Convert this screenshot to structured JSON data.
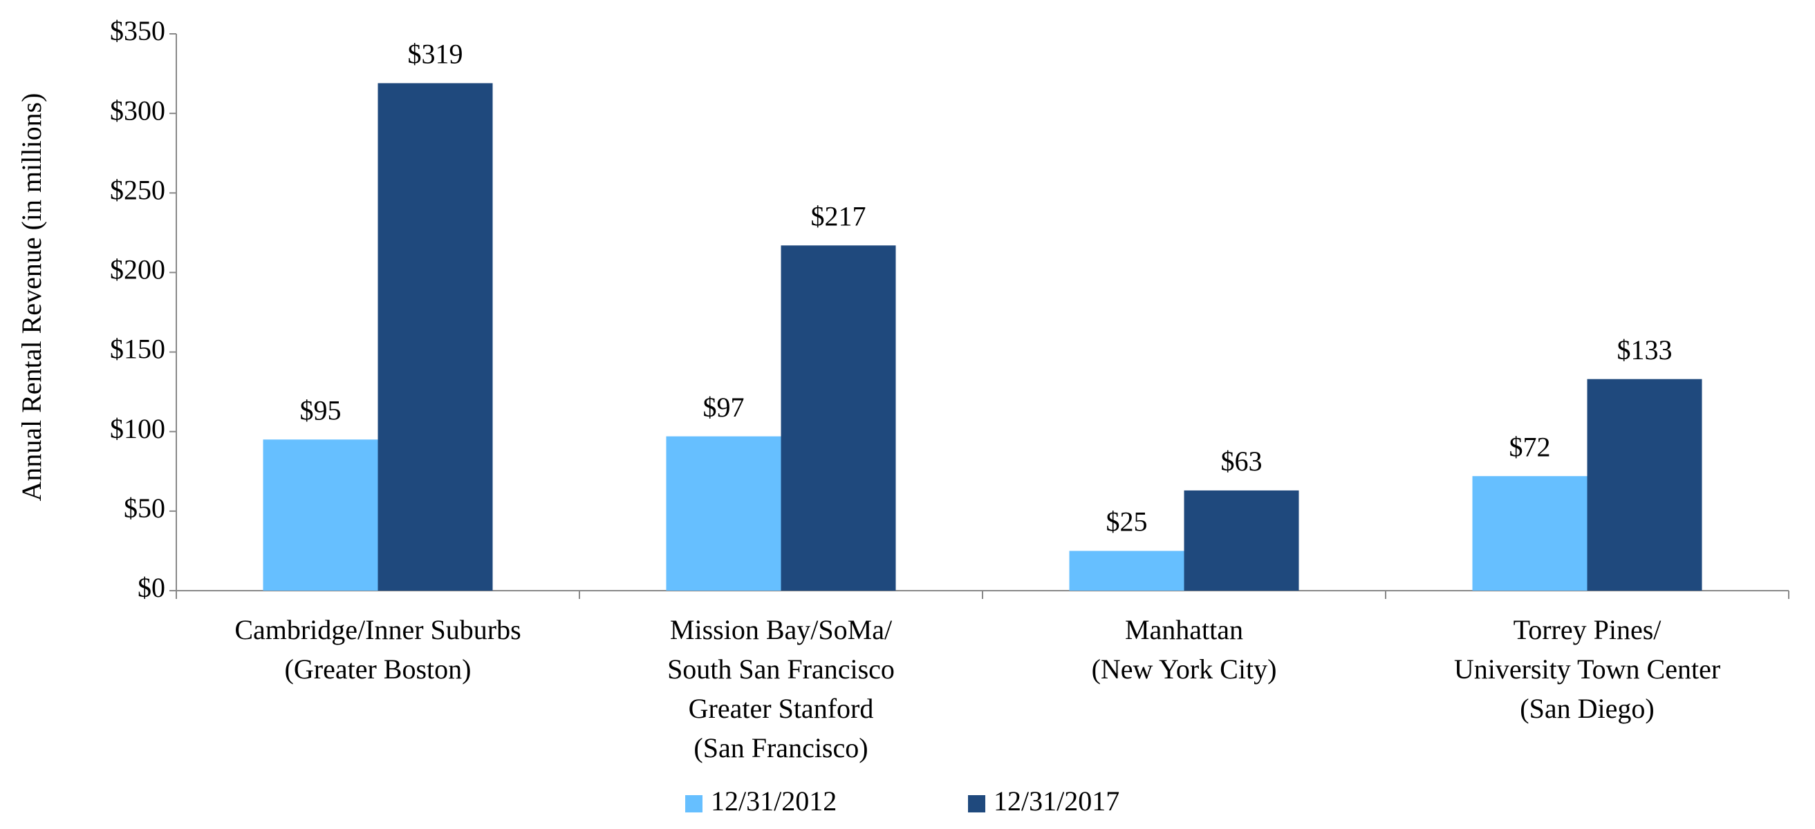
{
  "chart_data": {
    "type": "bar",
    "y_label": "Annual Rental Revenue (in millions)",
    "categories": [
      [
        "Cambridge/Inner Suburbs",
        "(Greater Boston)"
      ],
      [
        "Mission Bay/SoMa/",
        "South San Francisco",
        "Greater Stanford",
        "(San Francisco)"
      ],
      [
        "Manhattan",
        "(New York City)"
      ],
      [
        "Torrey Pines/",
        "University Town Center",
        "(San Diego)"
      ]
    ],
    "series": [
      {
        "name": "12/31/2012",
        "color": "#66bfff",
        "values": [
          95,
          97,
          25,
          72
        ],
        "value_labels": [
          "$95",
          "$97",
          "$25",
          "$72"
        ]
      },
      {
        "name": "12/31/2017",
        "color": "#1f497d",
        "values": [
          319,
          217,
          63,
          133
        ],
        "value_labels": [
          "$319",
          "$217",
          "$63",
          "$133"
        ]
      }
    ],
    "ylim": [
      0,
      350
    ],
    "yticks": [
      {
        "value": 0,
        "label": "$0"
      },
      {
        "value": 50,
        "label": "$50"
      },
      {
        "value": 100,
        "label": "$100"
      },
      {
        "value": 150,
        "label": "$150"
      },
      {
        "value": 200,
        "label": "$200"
      },
      {
        "value": 250,
        "label": "$250"
      },
      {
        "value": 300,
        "label": "$300"
      },
      {
        "value": 350,
        "label": "$350"
      }
    ],
    "grid": false,
    "legend": "bottom"
  }
}
